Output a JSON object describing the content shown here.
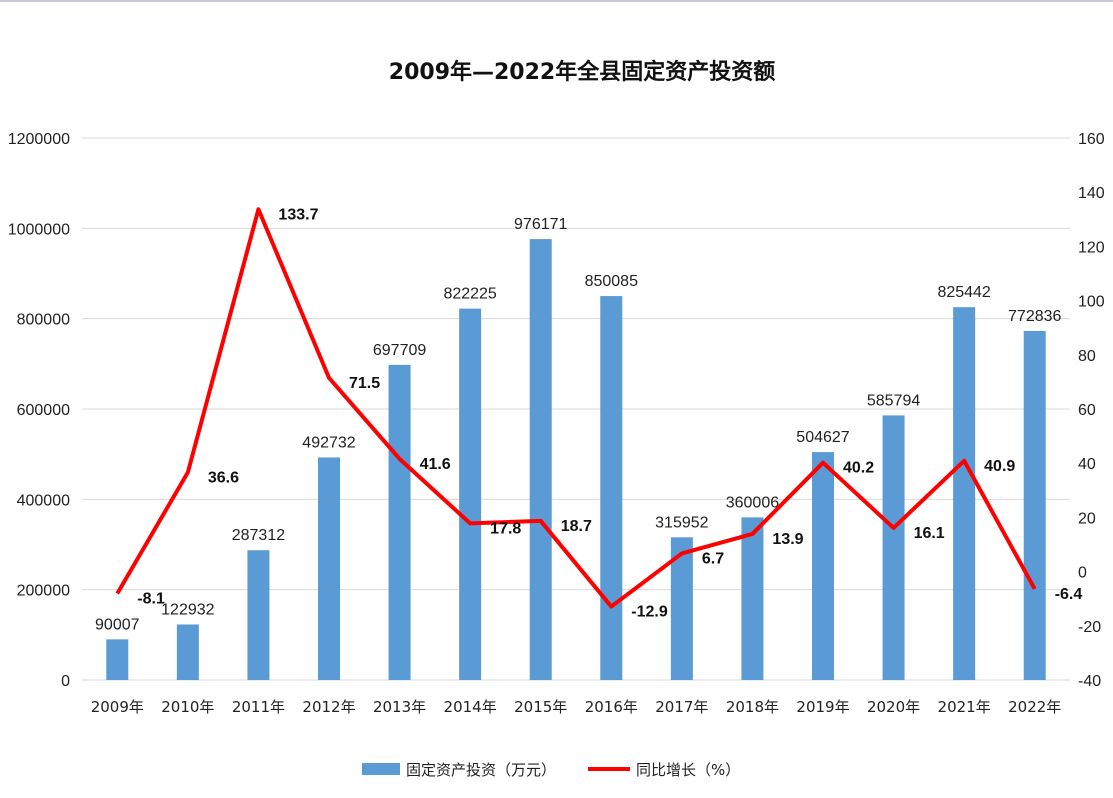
{
  "chart_data": {
    "type": "bar",
    "title": "2009年—2022年全县固定资产投资额",
    "categories": [
      "2009年",
      "2010年",
      "2011年",
      "2012年",
      "2013年",
      "2014年",
      "2015年",
      "2016年",
      "2017年",
      "2018年",
      "2019年",
      "2020年",
      "2021年",
      "2022年"
    ],
    "series": [
      {
        "name": "固定资产投资（万元）",
        "type": "bar",
        "axis": "left",
        "color": "#5b9bd5",
        "values": [
          90007,
          122932,
          287312,
          492732,
          697709,
          822225,
          976171,
          850085,
          315952,
          360006,
          504627,
          585794,
          825442,
          772836
        ]
      },
      {
        "name": "同比增长（%）",
        "type": "line",
        "axis": "right",
        "color": "#ff0000",
        "values": [
          -8.1,
          36.6,
          133.7,
          71.5,
          41.6,
          17.8,
          18.7,
          -12.9,
          6.7,
          13.9,
          40.2,
          16.1,
          40.9,
          -6.4
        ]
      }
    ],
    "y_left": {
      "min": 0,
      "max": 1200000,
      "ticks": [
        "0",
        "200000",
        "400000",
        "600000",
        "800000",
        "1000000",
        "1200000"
      ]
    },
    "y_right": {
      "min": -40,
      "max": 160,
      "ticks": [
        "-40",
        "-20",
        "0",
        "20",
        "40",
        "60",
        "80",
        "100",
        "120",
        "140",
        "160"
      ]
    },
    "grid": true,
    "legend_position": "bottom"
  }
}
